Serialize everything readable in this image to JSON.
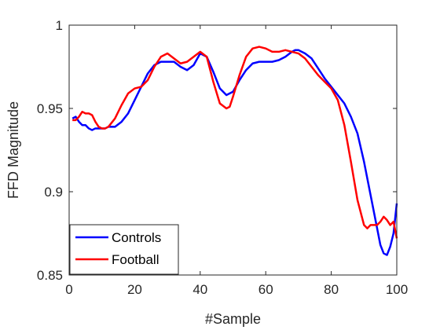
{
  "chart_data": {
    "type": "line",
    "title": "",
    "xlabel": "#Sample",
    "ylabel": "FFD Magnitude",
    "xlim": [
      0,
      100
    ],
    "ylim": [
      0.85,
      1.0
    ],
    "xticks": [
      0,
      20,
      40,
      60,
      80,
      100
    ],
    "xtick_labels": [
      "0",
      "20",
      "40",
      "60",
      "80",
      "100"
    ],
    "yticks": [
      0.85,
      0.9,
      0.95,
      1.0
    ],
    "ytick_labels": [
      "0.85",
      "0.9",
      "0.95",
      "1"
    ],
    "grid": false,
    "legend_position": "bottom-left",
    "series": [
      {
        "name": "Controls",
        "color": "#0000ff",
        "x": [
          1,
          2,
          3,
          4,
          5,
          6,
          7,
          8,
          9,
          10,
          11,
          12,
          14,
          16,
          18,
          20,
          22,
          24,
          26,
          28,
          30,
          32,
          34,
          36,
          38,
          40,
          42,
          44,
          46,
          48,
          50,
          52,
          54,
          56,
          58,
          60,
          62,
          64,
          66,
          68,
          69,
          70,
          72,
          74,
          76,
          78,
          80,
          82,
          84,
          86,
          88,
          90,
          92,
          94,
          95,
          96,
          97,
          98,
          99,
          100
        ],
        "y": [
          0.944,
          0.945,
          0.942,
          0.94,
          0.94,
          0.938,
          0.937,
          0.938,
          0.938,
          0.938,
          0.938,
          0.939,
          0.939,
          0.942,
          0.947,
          0.955,
          0.963,
          0.971,
          0.976,
          0.978,
          0.978,
          0.978,
          0.975,
          0.973,
          0.976,
          0.983,
          0.981,
          0.972,
          0.962,
          0.958,
          0.96,
          0.967,
          0.973,
          0.977,
          0.978,
          0.978,
          0.978,
          0.979,
          0.981,
          0.984,
          0.985,
          0.985,
          0.983,
          0.98,
          0.974,
          0.968,
          0.963,
          0.958,
          0.953,
          0.945,
          0.935,
          0.918,
          0.898,
          0.878,
          0.868,
          0.863,
          0.862,
          0.867,
          0.875,
          0.893
        ]
      },
      {
        "name": "Football",
        "color": "#ff0000",
        "x": [
          1,
          2,
          3,
          4,
          5,
          6,
          7,
          8,
          9,
          10,
          11,
          12,
          14,
          16,
          18,
          20,
          22,
          24,
          26,
          28,
          30,
          32,
          34,
          36,
          38,
          40,
          42,
          44,
          46,
          48,
          49,
          50,
          52,
          54,
          56,
          58,
          60,
          62,
          64,
          66,
          68,
          70,
          72,
          74,
          76,
          78,
          80,
          82,
          84,
          86,
          88,
          90,
          91,
          92,
          93,
          94,
          95,
          96,
          97,
          98,
          99,
          100
        ],
        "y": [
          0.943,
          0.943,
          0.945,
          0.948,
          0.947,
          0.947,
          0.946,
          0.942,
          0.939,
          0.938,
          0.938,
          0.939,
          0.944,
          0.952,
          0.959,
          0.962,
          0.963,
          0.967,
          0.975,
          0.981,
          0.983,
          0.98,
          0.977,
          0.978,
          0.981,
          0.984,
          0.981,
          0.966,
          0.953,
          0.95,
          0.951,
          0.957,
          0.97,
          0.981,
          0.986,
          0.987,
          0.986,
          0.984,
          0.984,
          0.985,
          0.984,
          0.983,
          0.98,
          0.975,
          0.97,
          0.966,
          0.962,
          0.955,
          0.94,
          0.918,
          0.895,
          0.88,
          0.878,
          0.88,
          0.88,
          0.88,
          0.882,
          0.885,
          0.883,
          0.88,
          0.882,
          0.872
        ]
      }
    ]
  }
}
